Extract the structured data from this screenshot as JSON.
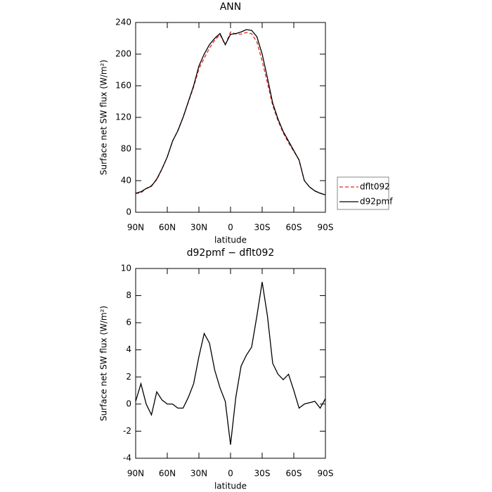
{
  "chart_data": [
    {
      "type": "line",
      "title": "ANN",
      "ylabel": "Surface net SW flux (W/m²)",
      "xlabel": "latitude",
      "x": [
        90,
        85,
        80,
        75,
        70,
        65,
        60,
        55,
        50,
        45,
        40,
        35,
        30,
        25,
        20,
        15,
        10,
        5,
        0,
        -5,
        -10,
        -15,
        -20,
        -25,
        -30,
        -35,
        -40,
        -45,
        -50,
        -55,
        -60,
        -65,
        -70,
        -75,
        -80,
        -85,
        -90
      ],
      "series": [
        {
          "name": "dflt092",
          "color": "#e8251f",
          "line_style": "dashed",
          "values": [
            23.8,
            24.5,
            30,
            33.8,
            41.1,
            54.7,
            70,
            90,
            103.3,
            120.3,
            139.5,
            158.5,
            181.5,
            194.8,
            207.5,
            217.5,
            224.8,
            211.8,
            228,
            225.5,
            225.2,
            227.4,
            225.8,
            215.5,
            191,
            163.5,
            135,
            115.8,
            100.2,
            87.8,
            77,
            66.3,
            40,
            31.9,
            26.8,
            24.3,
            21.6
          ]
        },
        {
          "name": "d92pmf",
          "color": "#000000",
          "line_style": "solid",
          "values": [
            24,
            26,
            30,
            33,
            42,
            55,
            70,
            90,
            103,
            120,
            140,
            160,
            185,
            200,
            212,
            220,
            226,
            212,
            225,
            226,
            228,
            231,
            230,
            222,
            200,
            170,
            138,
            118,
            102,
            90,
            78,
            66,
            40,
            32,
            27,
            24,
            22
          ]
        }
      ],
      "xlim": [
        90,
        -90
      ],
      "xticks": [
        {
          "value": 90,
          "label": "90N"
        },
        {
          "value": 60,
          "label": "60N"
        },
        {
          "value": 30,
          "label": "30N"
        },
        0,
        {
          "value": -30,
          "label": "30S"
        },
        {
          "value": -60,
          "label": "60S"
        },
        {
          "value": -90,
          "label": "90S"
        }
      ],
      "ylim": [
        0,
        240
      ],
      "yticks": [
        0,
        40,
        80,
        120,
        160,
        200,
        240
      ],
      "legend": "right"
    },
    {
      "type": "line",
      "title": "d92pmf − dflt092",
      "ylabel": "Surface net SW flux (W/m²)",
      "xlabel": "latitude",
      "x": [
        90,
        85,
        80,
        75,
        70,
        65,
        60,
        55,
        50,
        45,
        40,
        35,
        30,
        25,
        20,
        15,
        10,
        5,
        0,
        -5,
        -10,
        -15,
        -20,
        -25,
        -30,
        -35,
        -40,
        -45,
        -50,
        -55,
        -60,
        -65,
        -70,
        -75,
        -80,
        -85,
        -90
      ],
      "series": [
        {
          "color": "#000000",
          "line_style": "solid",
          "values": [
            0.2,
            1.5,
            0,
            -0.8,
            0.9,
            0.3,
            0,
            0,
            -0.3,
            -0.3,
            0.5,
            1.5,
            3.5,
            5.2,
            4.5,
            2.5,
            1.2,
            0.2,
            -3.0,
            0.5,
            2.8,
            3.6,
            4.2,
            6.5,
            9.0,
            6.5,
            3.0,
            2.2,
            1.8,
            2.2,
            1.0,
            -0.3,
            0,
            0.1,
            0.2,
            -0.3,
            0.4
          ]
        }
      ],
      "xlim": [
        90,
        -90
      ],
      "xticks": [
        {
          "value": 90,
          "label": "90N"
        },
        {
          "value": 60,
          "label": "60N"
        },
        {
          "value": 30,
          "label": "30N"
        },
        0,
        {
          "value": -30,
          "label": "30S"
        },
        {
          "value": -60,
          "label": "60S"
        },
        {
          "value": -90,
          "label": "90S"
        }
      ],
      "ylim": [
        -4,
        10
      ],
      "yticks": [
        -4,
        -2,
        0,
        2,
        4,
        6,
        8,
        10
      ]
    }
  ]
}
